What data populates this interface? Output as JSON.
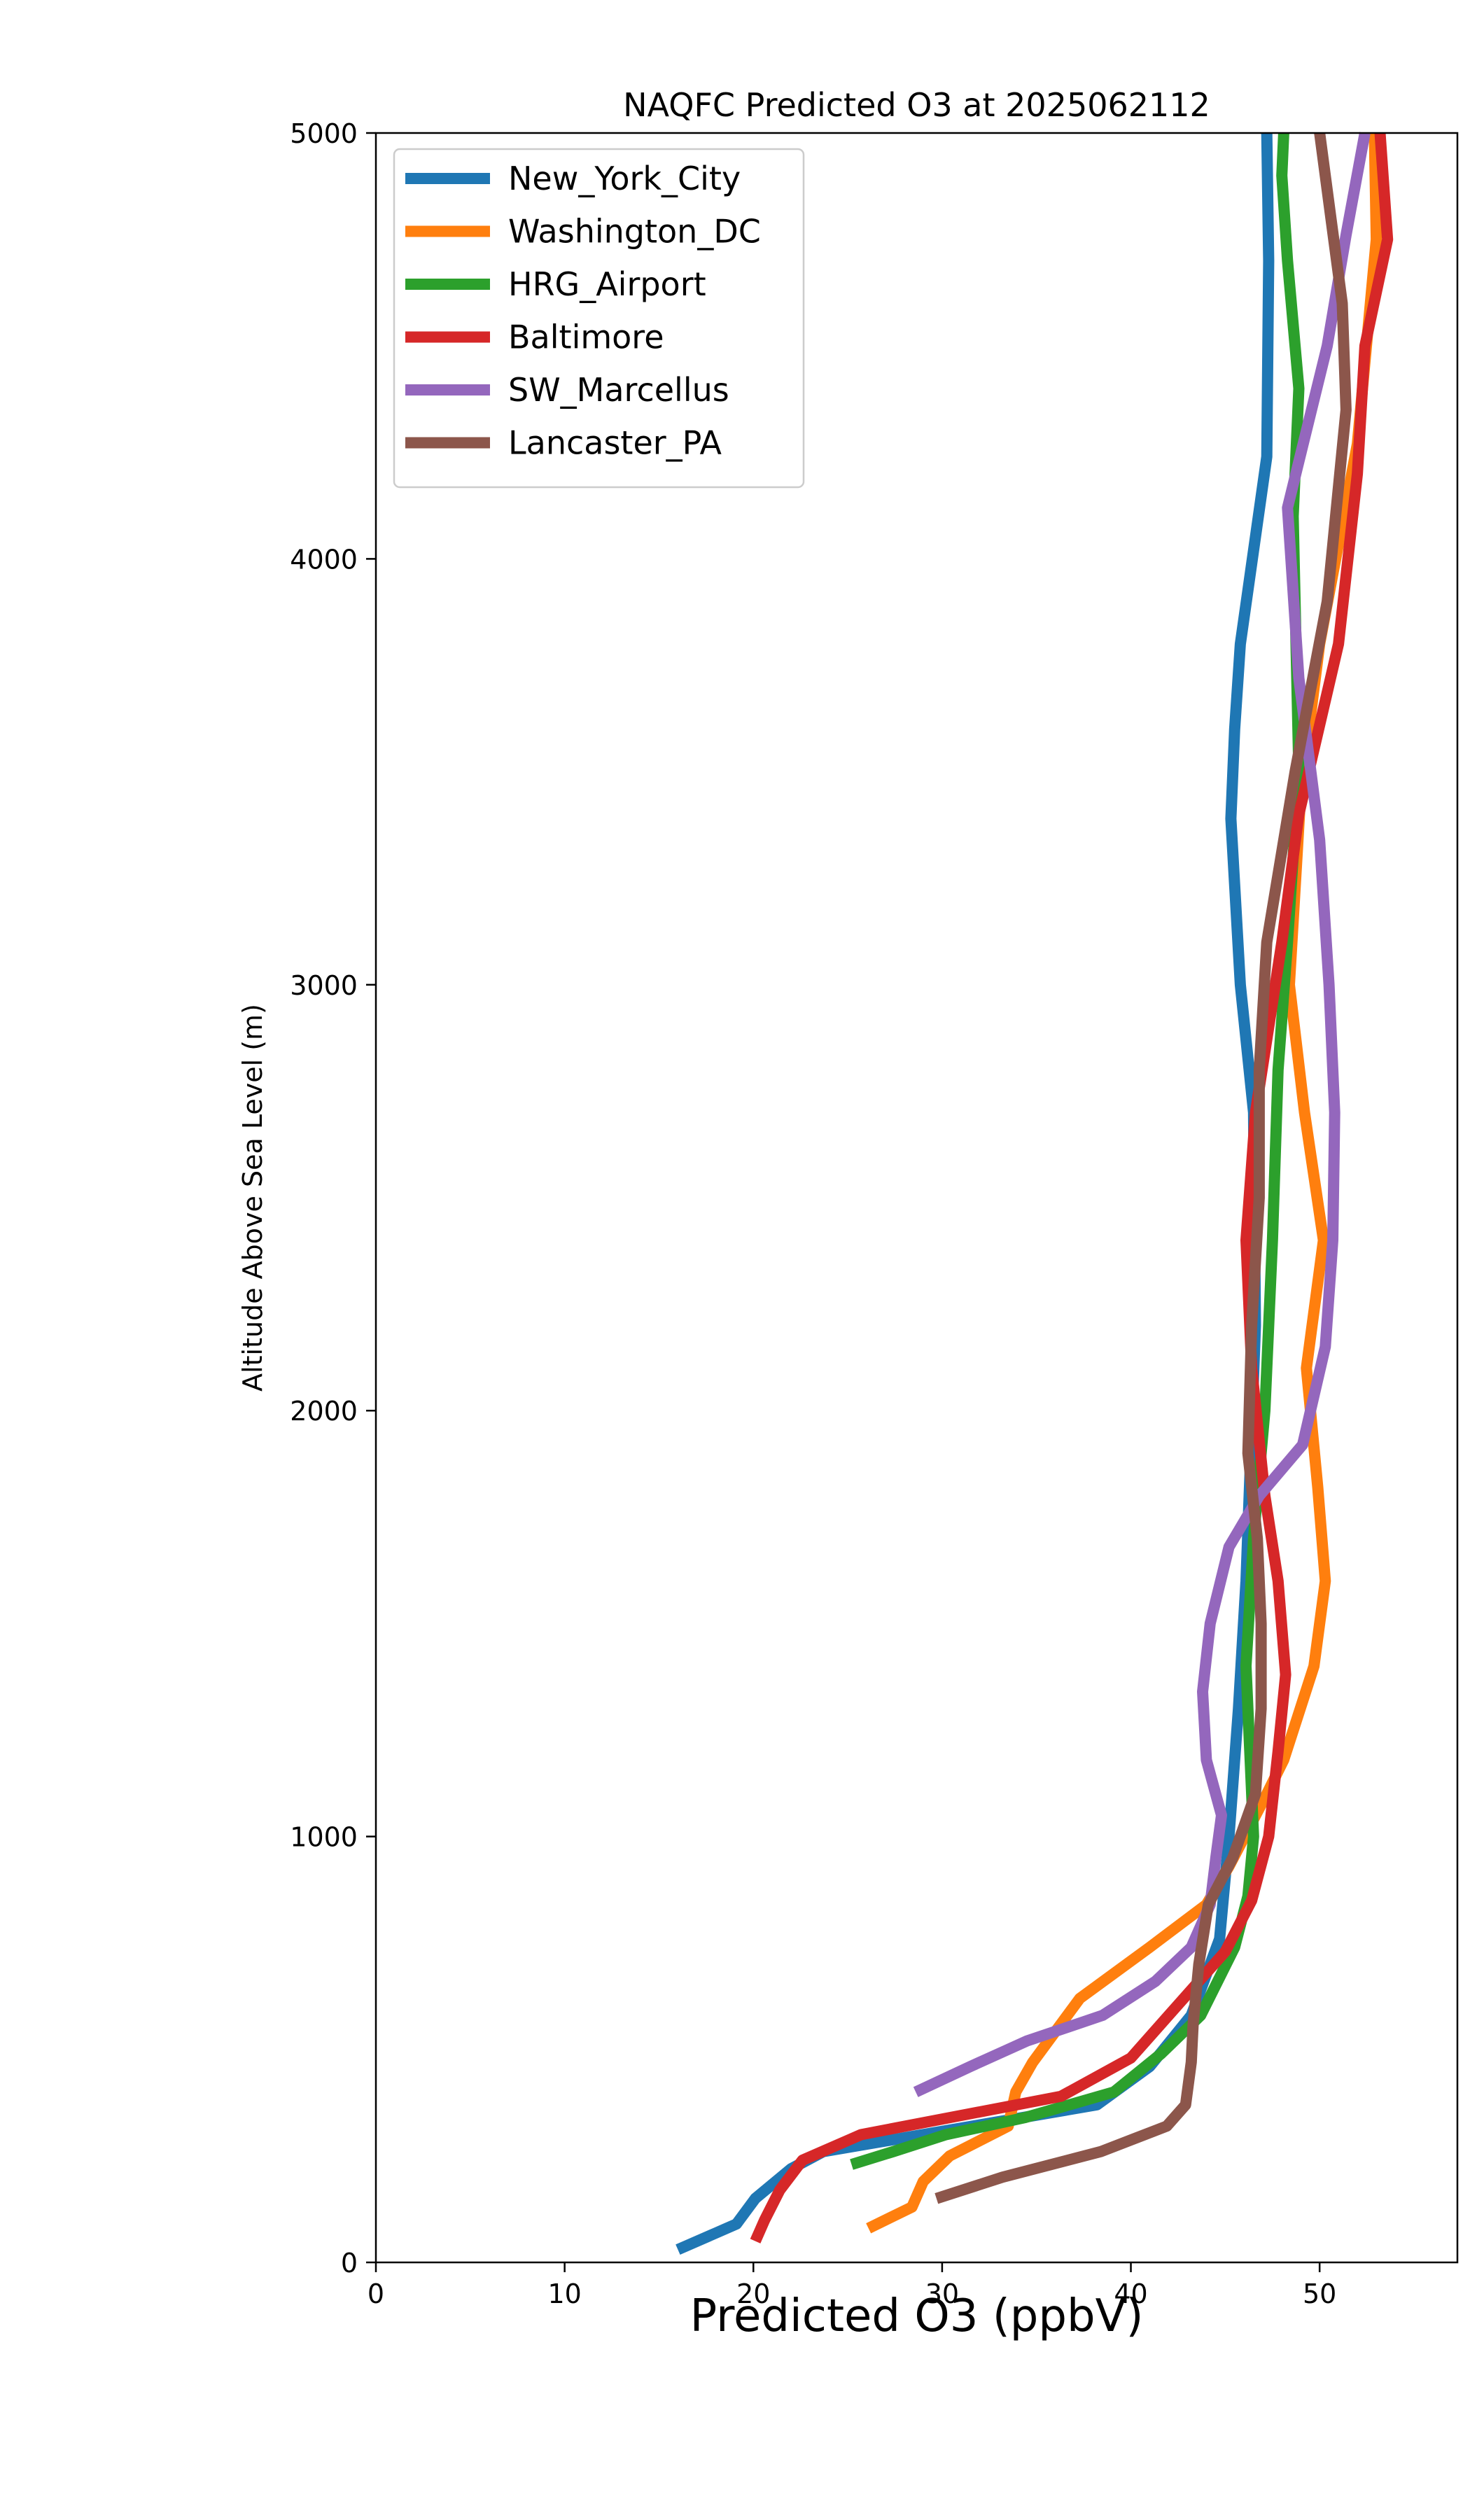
{
  "chart_data": {
    "type": "line",
    "title": "NAQFC Predicted O3 at 2025062112",
    "xlabel": "Predicted O3 (ppbV)",
    "ylabel": "Altitude Above Sea Level (m)",
    "xlim": [
      0,
      57.3
    ],
    "ylim": [
      0,
      5000
    ],
    "xticks": [
      0,
      10,
      20,
      30,
      40,
      50
    ],
    "yticks": [
      0,
      1000,
      2000,
      3000,
      4000,
      5000
    ],
    "grid": false,
    "legend_position": "upper-left",
    "series": [
      {
        "name": "New_York_City",
        "color": "#1f77b4",
        "points": [
          [
            16.0,
            30
          ],
          [
            19.1,
            90
          ],
          [
            20.1,
            150
          ],
          [
            22.0,
            220
          ],
          [
            23.7,
            260
          ],
          [
            38.2,
            370
          ],
          [
            41.0,
            460
          ],
          [
            43.2,
            580
          ],
          [
            44.7,
            760
          ],
          [
            45.2,
            1000
          ],
          [
            45.7,
            1300
          ],
          [
            46.1,
            1600
          ],
          [
            46.6,
            2200
          ],
          [
            46.5,
            2700
          ],
          [
            45.8,
            3000
          ],
          [
            45.3,
            3390
          ],
          [
            45.5,
            3600
          ],
          [
            45.8,
            3800
          ],
          [
            47.2,
            4240
          ],
          [
            47.3,
            4700
          ],
          [
            47.2,
            5000
          ]
        ]
      },
      {
        "name": "Washington_DC",
        "color": "#ff7f0e",
        "points": [
          [
            26.1,
            80
          ],
          [
            28.4,
            130
          ],
          [
            29.0,
            190
          ],
          [
            30.4,
            250
          ],
          [
            33.5,
            320
          ],
          [
            33.9,
            400
          ],
          [
            34.8,
            470
          ],
          [
            37.3,
            620
          ],
          [
            41.0,
            740
          ],
          [
            44.0,
            840
          ],
          [
            45.2,
            930
          ],
          [
            47.2,
            1100
          ],
          [
            48.1,
            1180
          ],
          [
            49.7,
            1400
          ],
          [
            50.3,
            1600
          ],
          [
            49.9,
            1820
          ],
          [
            49.3,
            2100
          ],
          [
            50.2,
            2400
          ],
          [
            49.2,
            2700
          ],
          [
            48.4,
            3000
          ],
          [
            49.0,
            3450
          ],
          [
            50.0,
            3800
          ],
          [
            52.0,
            4270
          ],
          [
            53.0,
            4750
          ],
          [
            52.9,
            5000
          ]
        ]
      },
      {
        "name": "HRG_Airport",
        "color": "#2ca02c",
        "points": [
          [
            25.2,
            230
          ],
          [
            27.4,
            260
          ],
          [
            30.2,
            300
          ],
          [
            34.4,
            340
          ],
          [
            39.1,
            400
          ],
          [
            41.6,
            490
          ],
          [
            43.7,
            580
          ],
          [
            45.5,
            740
          ],
          [
            46.2,
            860
          ],
          [
            46.5,
            1000
          ],
          [
            46.3,
            1200
          ],
          [
            46.1,
            1400
          ],
          [
            46.5,
            1700
          ],
          [
            47.1,
            2000
          ],
          [
            47.5,
            2400
          ],
          [
            47.8,
            2800
          ],
          [
            48.3,
            3100
          ],
          [
            48.9,
            3500
          ],
          [
            48.6,
            4100
          ],
          [
            48.9,
            4400
          ],
          [
            48.3,
            4700
          ],
          [
            48.0,
            4900
          ],
          [
            48.1,
            5000
          ]
        ]
      },
      {
        "name": "Baltimore",
        "color": "#d62728",
        "points": [
          [
            20.1,
            50
          ],
          [
            20.6,
            100
          ],
          [
            21.4,
            170
          ],
          [
            22.6,
            240
          ],
          [
            25.7,
            300
          ],
          [
            36.3,
            390
          ],
          [
            40.0,
            480
          ],
          [
            42.0,
            580
          ],
          [
            43.6,
            660
          ],
          [
            45.0,
            730
          ],
          [
            46.4,
            850
          ],
          [
            47.3,
            1000
          ],
          [
            47.8,
            1200
          ],
          [
            48.2,
            1380
          ],
          [
            47.8,
            1600
          ],
          [
            47.1,
            1800
          ],
          [
            46.4,
            2100
          ],
          [
            46.1,
            2400
          ],
          [
            46.6,
            2700
          ],
          [
            47.3,
            2900
          ],
          [
            48.0,
            3100
          ],
          [
            48.9,
            3400
          ],
          [
            51.0,
            3800
          ],
          [
            52.0,
            4200
          ],
          [
            52.4,
            4500
          ],
          [
            53.6,
            4750
          ],
          [
            53.2,
            5000
          ]
        ]
      },
      {
        "name": "SW_Marcellus",
        "color": "#9467bd",
        "points": [
          [
            28.6,
            400
          ],
          [
            31.5,
            460
          ],
          [
            34.5,
            520
          ],
          [
            38.5,
            580
          ],
          [
            41.3,
            660
          ],
          [
            43.2,
            740
          ],
          [
            44.2,
            840
          ],
          [
            44.5,
            950
          ],
          [
            44.8,
            1050
          ],
          [
            44.0,
            1180
          ],
          [
            43.8,
            1340
          ],
          [
            44.2,
            1500
          ],
          [
            45.2,
            1680
          ],
          [
            46.8,
            1800
          ],
          [
            49.1,
            1920
          ],
          [
            50.3,
            2150
          ],
          [
            50.7,
            2400
          ],
          [
            50.8,
            2700
          ],
          [
            50.5,
            3000
          ],
          [
            50.0,
            3340
          ],
          [
            48.9,
            3720
          ],
          [
            48.3,
            4120
          ],
          [
            50.4,
            4500
          ],
          [
            51.4,
            4760
          ],
          [
            52.4,
            5000
          ]
        ]
      },
      {
        "name": "Lancaster_PA",
        "color": "#8c564b",
        "points": [
          [
            29.7,
            150
          ],
          [
            33.2,
            200
          ],
          [
            38.4,
            260
          ],
          [
            41.9,
            320
          ],
          [
            42.9,
            370
          ],
          [
            43.2,
            470
          ],
          [
            43.3,
            560
          ],
          [
            43.6,
            700
          ],
          [
            44.1,
            840
          ],
          [
            45.4,
            950
          ],
          [
            46.6,
            1100
          ],
          [
            46.9,
            1300
          ],
          [
            46.9,
            1500
          ],
          [
            46.7,
            1700
          ],
          [
            46.2,
            1900
          ],
          [
            46.4,
            2200
          ],
          [
            46.8,
            2500
          ],
          [
            46.8,
            2800
          ],
          [
            47.2,
            3100
          ],
          [
            48.7,
            3500
          ],
          [
            50.4,
            3900
          ],
          [
            51.4,
            4350
          ],
          [
            51.2,
            4600
          ],
          [
            50.6,
            4800
          ],
          [
            50.0,
            5000
          ]
        ]
      }
    ]
  }
}
